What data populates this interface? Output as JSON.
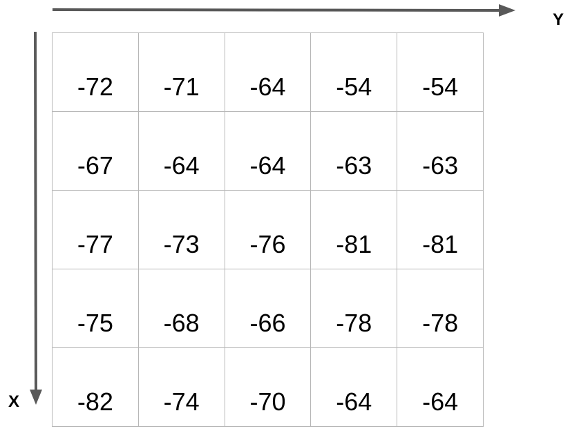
{
  "axes": {
    "horizontal_label": "Y",
    "vertical_label": "X",
    "arrow_color": "#595959"
  },
  "grid": {
    "border_color": "#b7b7b7",
    "rows": [
      [
        "-72",
        "-71",
        "-64",
        "-54",
        "-54"
      ],
      [
        "-67",
        "-64",
        "-64",
        "-63",
        "-63"
      ],
      [
        "-77",
        "-73",
        "-76",
        "-81",
        "-81"
      ],
      [
        "-75",
        "-68",
        "-66",
        "-78",
        "-78"
      ],
      [
        "-82",
        "-74",
        "-70",
        "-64",
        "-64"
      ]
    ]
  }
}
